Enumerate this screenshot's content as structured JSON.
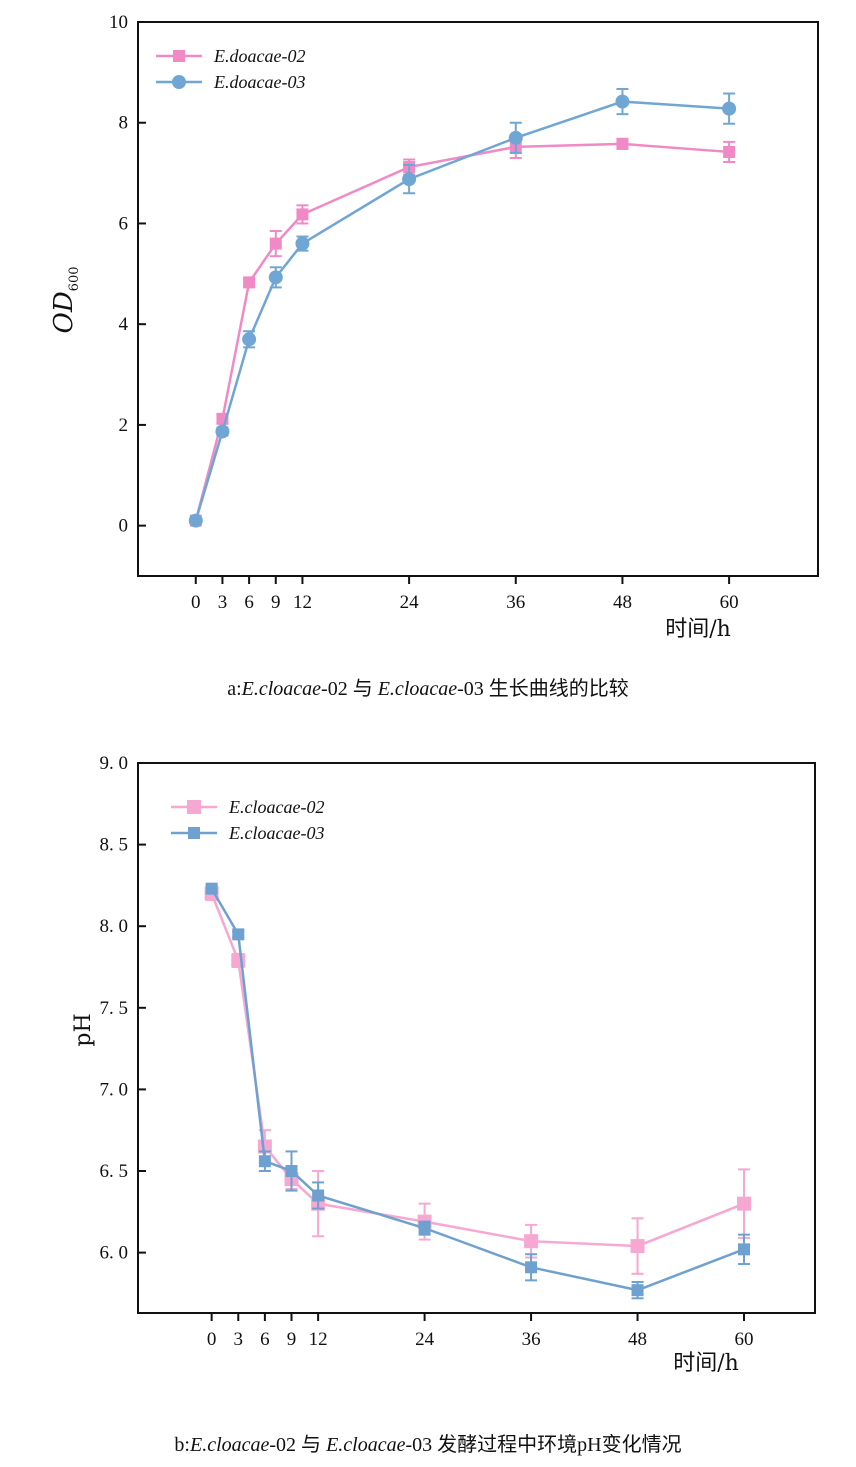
{
  "chart_data": [
    {
      "type": "line",
      "xlabel": "时间/h",
      "ylabel": "OD",
      "ylabel_sub": "600",
      "x": [
        0,
        3,
        6,
        9,
        12,
        24,
        36,
        48,
        60
      ],
      "x_ticks": [
        "0",
        "3",
        "6",
        "9",
        "12",
        "24",
        "36",
        "48",
        "60"
      ],
      "ylim": [
        -1,
        10
      ],
      "y_ticks": [
        "0",
        "2",
        "4",
        "6",
        "8",
        "10"
      ],
      "legend_position": "top-left",
      "series": [
        {
          "name": "E.doacae-02",
          "color": "#f08ac6",
          "marker": "square",
          "values": [
            0.1,
            2.12,
            4.83,
            5.6,
            6.18,
            7.12,
            7.52,
            7.58,
            7.42
          ],
          "errors": [
            0.05,
            0.08,
            0.08,
            0.25,
            0.18,
            0.15,
            0.22,
            0.1,
            0.2
          ]
        },
        {
          "name": "E.doacae-03",
          "color": "#6fa6d4",
          "marker": "circle",
          "values": [
            0.1,
            1.87,
            3.7,
            4.93,
            5.6,
            6.88,
            7.7,
            8.42,
            8.28
          ],
          "errors": [
            0.05,
            0.08,
            0.16,
            0.2,
            0.14,
            0.28,
            0.3,
            0.25,
            0.3
          ]
        }
      ]
    },
    {
      "type": "line",
      "xlabel": "时间/h",
      "ylabel": "pH",
      "x": [
        0,
        3,
        6,
        9,
        12,
        24,
        36,
        48,
        60
      ],
      "x_ticks": [
        "0",
        "3",
        "6",
        "9",
        "12",
        "24",
        "36",
        "48",
        "60"
      ],
      "ylim": [
        5.63,
        9.0
      ],
      "y_ticks": [
        "6. 0",
        "6. 5",
        "7. 0",
        "7. 5",
        "8. 0",
        "8. 5",
        "9. 0"
      ],
      "legend_position": "top-left",
      "series": [
        {
          "name": "E.cloacae-02",
          "color": "#f6a8d2",
          "marker": "square",
          "values": [
            8.2,
            7.79,
            6.65,
            6.45,
            6.3,
            6.19,
            6.07,
            6.04,
            6.3
          ],
          "errors": [
            0.04,
            0.04,
            0.1,
            0.06,
            0.2,
            0.11,
            0.1,
            0.17,
            0.21
          ]
        },
        {
          "name": "E.cloacae-03",
          "color": "#6ea1cf",
          "marker": "square",
          "values": [
            8.23,
            7.95,
            6.56,
            6.5,
            6.35,
            6.15,
            5.91,
            5.77,
            6.02
          ],
          "errors": [
            0.02,
            0.02,
            0.06,
            0.12,
            0.08,
            0.04,
            0.08,
            0.05,
            0.09
          ]
        }
      ]
    }
  ],
  "captions": [
    {
      "prefix": "a:",
      "s1": "E.cloacae",
      "mid1": "-02 与 ",
      "s2": "E.cloacae",
      "mid2": "-03 生长曲线的比较"
    },
    {
      "prefix": "b:",
      "s1": "E.cloacae",
      "mid1": "-02 与 ",
      "s2": "E.cloacae",
      "mid2": "-03 发酵过程中环境pH变化情况"
    }
  ]
}
